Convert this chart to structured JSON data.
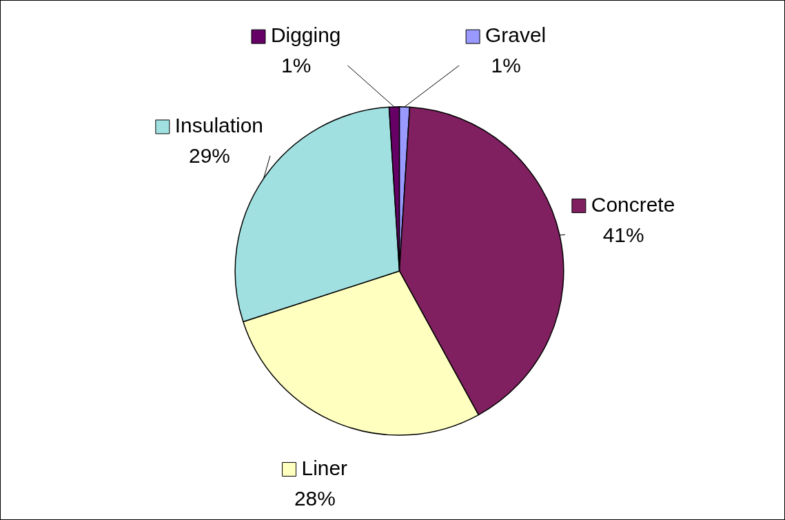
{
  "chart_data": {
    "type": "pie",
    "categories": [
      "Gravel",
      "Concrete",
      "Liner",
      "Insulation",
      "Digging"
    ],
    "values": [
      1,
      41,
      28,
      29,
      1
    ],
    "value_labels": [
      "1%",
      "41%",
      "28%",
      "29%",
      "1%"
    ],
    "colors": [
      "#9999ff",
      "#802060",
      "#ffffc0",
      "#a0e0e0",
      "#660066"
    ],
    "legend": "top right"
  }
}
